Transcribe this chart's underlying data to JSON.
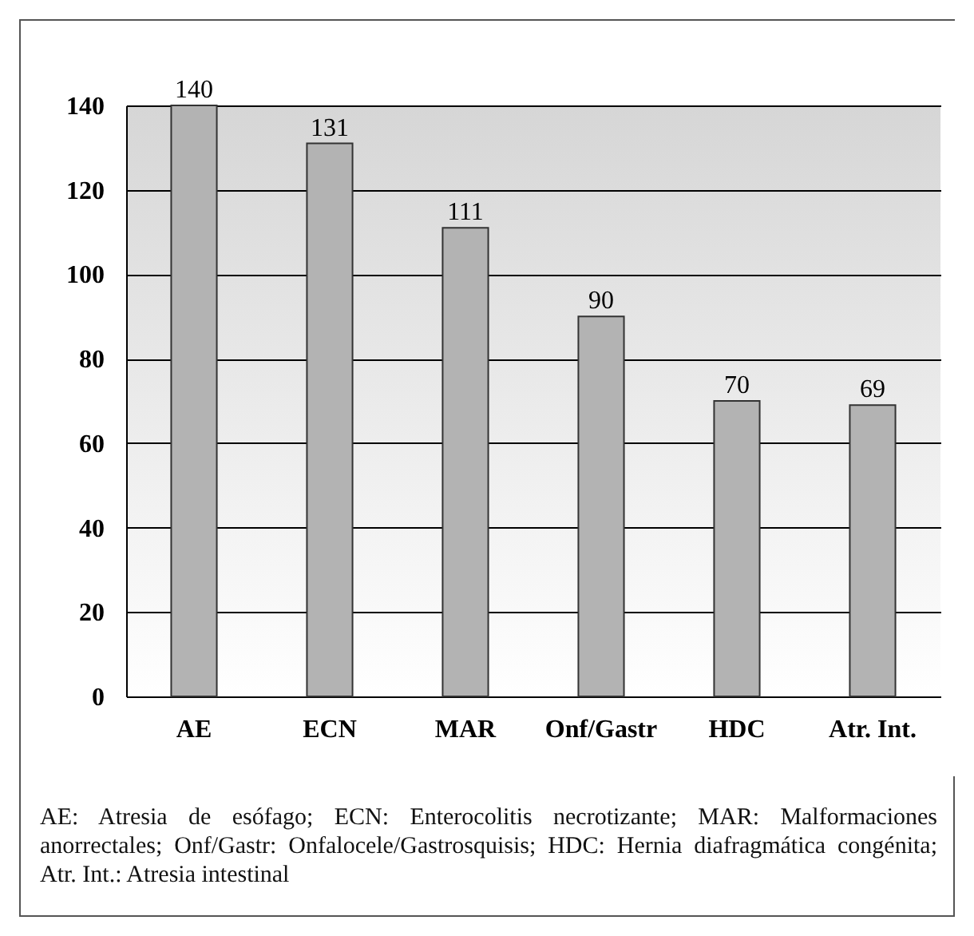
{
  "chart_data": {
    "type": "bar",
    "categories": [
      "AE",
      "ECN",
      "MAR",
      "Onf/Gastr",
      "HDC",
      "Atr. Int."
    ],
    "values": [
      140,
      131,
      111,
      90,
      70,
      69
    ],
    "color": "#b3b3b3",
    "ylim": [
      0,
      140
    ],
    "yticks": [
      0,
      20,
      40,
      60,
      80,
      100,
      120,
      140
    ],
    "grid": "y",
    "data_labels": true,
    "annotations": [
      "AE: Atresia de esófago; ECN: Enterocolitis necrotizante; MAR: Malformaciones anorrectales; Onf/Gastr: Onfalocele/Gastrosquisis; HDC: Hernia diafragmática congénita; Atr. Int.: Atresia intestinal"
    ]
  }
}
